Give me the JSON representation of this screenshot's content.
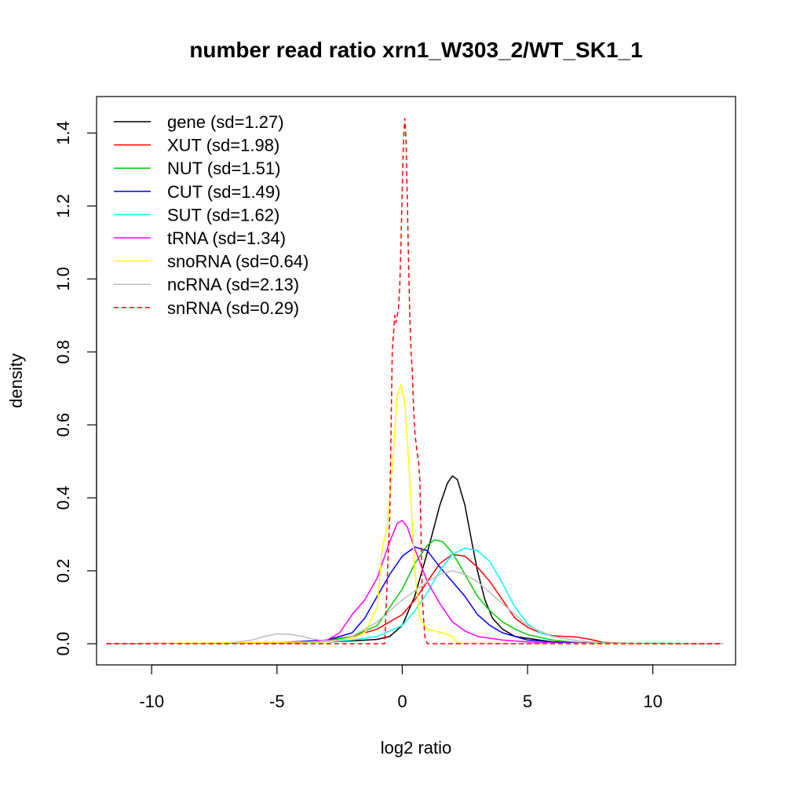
{
  "chart_data": {
    "type": "line",
    "title": "number read ratio xrn1_W303_2/WT_SK1_1",
    "xlabel": "log2 ratio",
    "ylabel": "density",
    "xlim": [
      -12.2,
      13.3
    ],
    "ylim": [
      -0.058,
      1.5
    ],
    "xticks": [
      -10,
      -5,
      0,
      5,
      10
    ],
    "xtick_labels": [
      "-10",
      "-5",
      "0",
      "5",
      "10"
    ],
    "yticks": [
      0.0,
      0.2,
      0.4,
      0.6,
      0.8,
      1.0,
      1.2,
      1.4
    ],
    "ytick_labels": [
      "0.0",
      "0.2",
      "0.4",
      "0.6",
      "0.8",
      "1.0",
      "1.2",
      "1.4"
    ],
    "grid": false,
    "legend_position": "top-left",
    "series": [
      {
        "name": "gene (sd=1.27)",
        "color": "#000000",
        "dash": "solid",
        "x": [
          -11.8,
          -5,
          -3,
          -2,
          -1,
          -0.5,
          0,
          0.5,
          1,
          1.5,
          1.8,
          2.0,
          2.2,
          2.5,
          2.8,
          3.0,
          3.3,
          3.6,
          4,
          4.5,
          5,
          6,
          8,
          12.8
        ],
        "y": [
          0,
          0.002,
          0.005,
          0.008,
          0.012,
          0.02,
          0.05,
          0.13,
          0.25,
          0.38,
          0.44,
          0.46,
          0.45,
          0.38,
          0.27,
          0.2,
          0.12,
          0.07,
          0.04,
          0.02,
          0.015,
          0.005,
          0.001,
          0
        ]
      },
      {
        "name": "XUT (sd=1.98)",
        "color": "#ff0000",
        "dash": "solid",
        "x": [
          -11.8,
          -6,
          -4,
          -3,
          -2,
          -1,
          0,
          0.5,
          1,
          1.5,
          2,
          2.5,
          3,
          3.5,
          4,
          4.5,
          5,
          5.5,
          6,
          6.5,
          7,
          7.5,
          8,
          9,
          12.8
        ],
        "y": [
          0,
          0.002,
          0.005,
          0.01,
          0.02,
          0.04,
          0.08,
          0.12,
          0.17,
          0.22,
          0.245,
          0.24,
          0.21,
          0.17,
          0.12,
          0.07,
          0.045,
          0.03,
          0.022,
          0.02,
          0.018,
          0.012,
          0.004,
          0.001,
          0
        ]
      },
      {
        "name": "NUT (sd=1.51)",
        "color": "#00cc00",
        "dash": "solid",
        "x": [
          -11.8,
          -5,
          -3,
          -2,
          -1,
          0,
          0.5,
          1,
          1.3,
          1.6,
          2,
          2.5,
          3,
          3.5,
          4,
          4.5,
          5,
          6,
          7,
          12.8
        ],
        "y": [
          0,
          0.002,
          0.008,
          0.02,
          0.05,
          0.15,
          0.22,
          0.27,
          0.285,
          0.28,
          0.25,
          0.19,
          0.13,
          0.09,
          0.06,
          0.04,
          0.025,
          0.01,
          0.003,
          0
        ]
      },
      {
        "name": "CUT (sd=1.49)",
        "color": "#0000ff",
        "dash": "solid",
        "x": [
          -11.8,
          -5,
          -3,
          -2,
          -1.5,
          -1,
          -0.5,
          0,
          0.5,
          1,
          1.5,
          2,
          2.5,
          3,
          3.5,
          4,
          4.5,
          5,
          6,
          7,
          12.8
        ],
        "y": [
          0,
          0.003,
          0.01,
          0.03,
          0.07,
          0.13,
          0.19,
          0.24,
          0.265,
          0.255,
          0.21,
          0.17,
          0.13,
          0.08,
          0.05,
          0.03,
          0.02,
          0.01,
          0.005,
          0.002,
          0
        ]
      },
      {
        "name": "SUT (sd=1.62)",
        "color": "#00ffff",
        "dash": "solid",
        "x": [
          -11.8,
          -5,
          -3,
          -2,
          -1,
          0,
          0.5,
          1,
          1.5,
          2,
          2.5,
          3,
          3.5,
          4,
          4.5,
          5,
          5.5,
          6,
          7,
          8,
          12.8
        ],
        "y": [
          0,
          0.002,
          0.005,
          0.01,
          0.02,
          0.05,
          0.09,
          0.14,
          0.2,
          0.245,
          0.262,
          0.255,
          0.225,
          0.165,
          0.1,
          0.055,
          0.03,
          0.02,
          0.008,
          0.002,
          0
        ]
      },
      {
        "name": "tRNA (sd=1.34)",
        "color": "#ff00ff",
        "dash": "solid",
        "x": [
          -11.8,
          -4,
          -3,
          -2.5,
          -2,
          -1.5,
          -1,
          -0.5,
          -0.2,
          0,
          0.2,
          0.5,
          1,
          1.5,
          2,
          2.5,
          3,
          4,
          5,
          6,
          12.8
        ],
        "y": [
          0,
          0.003,
          0.01,
          0.03,
          0.08,
          0.12,
          0.18,
          0.28,
          0.33,
          0.338,
          0.32,
          0.26,
          0.17,
          0.11,
          0.06,
          0.035,
          0.02,
          0.01,
          0.005,
          0.002,
          0
        ]
      },
      {
        "name": "snoRNA (sd=0.64)",
        "color": "#ffff00",
        "dash": "solid",
        "x": [
          -11.8,
          -3,
          -2,
          -1.5,
          -1,
          -0.8,
          -0.6,
          -0.4,
          -0.2,
          -0.05,
          0.1,
          0.3,
          0.5,
          0.7,
          1.0,
          1.3,
          1.6,
          1.8,
          2.0,
          2.2,
          12.8
        ],
        "y": [
          0,
          0.005,
          0.015,
          0.03,
          0.1,
          0.26,
          0.32,
          0.48,
          0.68,
          0.71,
          0.66,
          0.45,
          0.2,
          0.07,
          0.04,
          0.035,
          0.03,
          0.025,
          0.02,
          0.001,
          0
        ]
      },
      {
        "name": "ncRNA (sd=2.13)",
        "color": "#bebebe",
        "dash": "solid",
        "x": [
          -11.8,
          -7,
          -6,
          -5.5,
          -5,
          -4.5,
          -4,
          -3.5,
          -3,
          -2.5,
          -2,
          -1,
          0,
          1,
          1.5,
          2,
          2.5,
          3,
          3.5,
          4,
          4.5,
          5,
          6,
          7,
          8,
          12.8
        ],
        "y": [
          0,
          0.001,
          0.01,
          0.02,
          0.027,
          0.026,
          0.02,
          0.012,
          0.008,
          0.01,
          0.02,
          0.06,
          0.12,
          0.17,
          0.19,
          0.2,
          0.19,
          0.17,
          0.14,
          0.11,
          0.08,
          0.05,
          0.02,
          0.008,
          0.002,
          0
        ]
      },
      {
        "name": "snRNA (sd=0.29)",
        "color": "#ff0000",
        "dash": "dashed",
        "x": [
          -11.8,
          -0.7,
          -0.5,
          -0.4,
          -0.3,
          -0.25,
          -0.2,
          -0.15,
          -0.1,
          -0.05,
          0.0,
          0.05,
          0.1,
          0.15,
          0.2,
          0.25,
          0.3,
          0.35,
          0.4,
          0.45,
          0.5,
          0.55,
          0.6,
          0.65,
          0.7,
          0.75,
          0.8,
          0.9,
          1.0,
          12.8
        ],
        "y": [
          0,
          0.0,
          0.35,
          0.8,
          0.9,
          0.88,
          0.9,
          0.92,
          0.98,
          1.1,
          1.25,
          1.38,
          1.44,
          1.38,
          1.22,
          1.05,
          0.9,
          0.8,
          0.75,
          0.65,
          0.58,
          0.55,
          0.52,
          0.5,
          0.45,
          0.3,
          0.12,
          0.02,
          0.0,
          0
        ]
      }
    ]
  }
}
